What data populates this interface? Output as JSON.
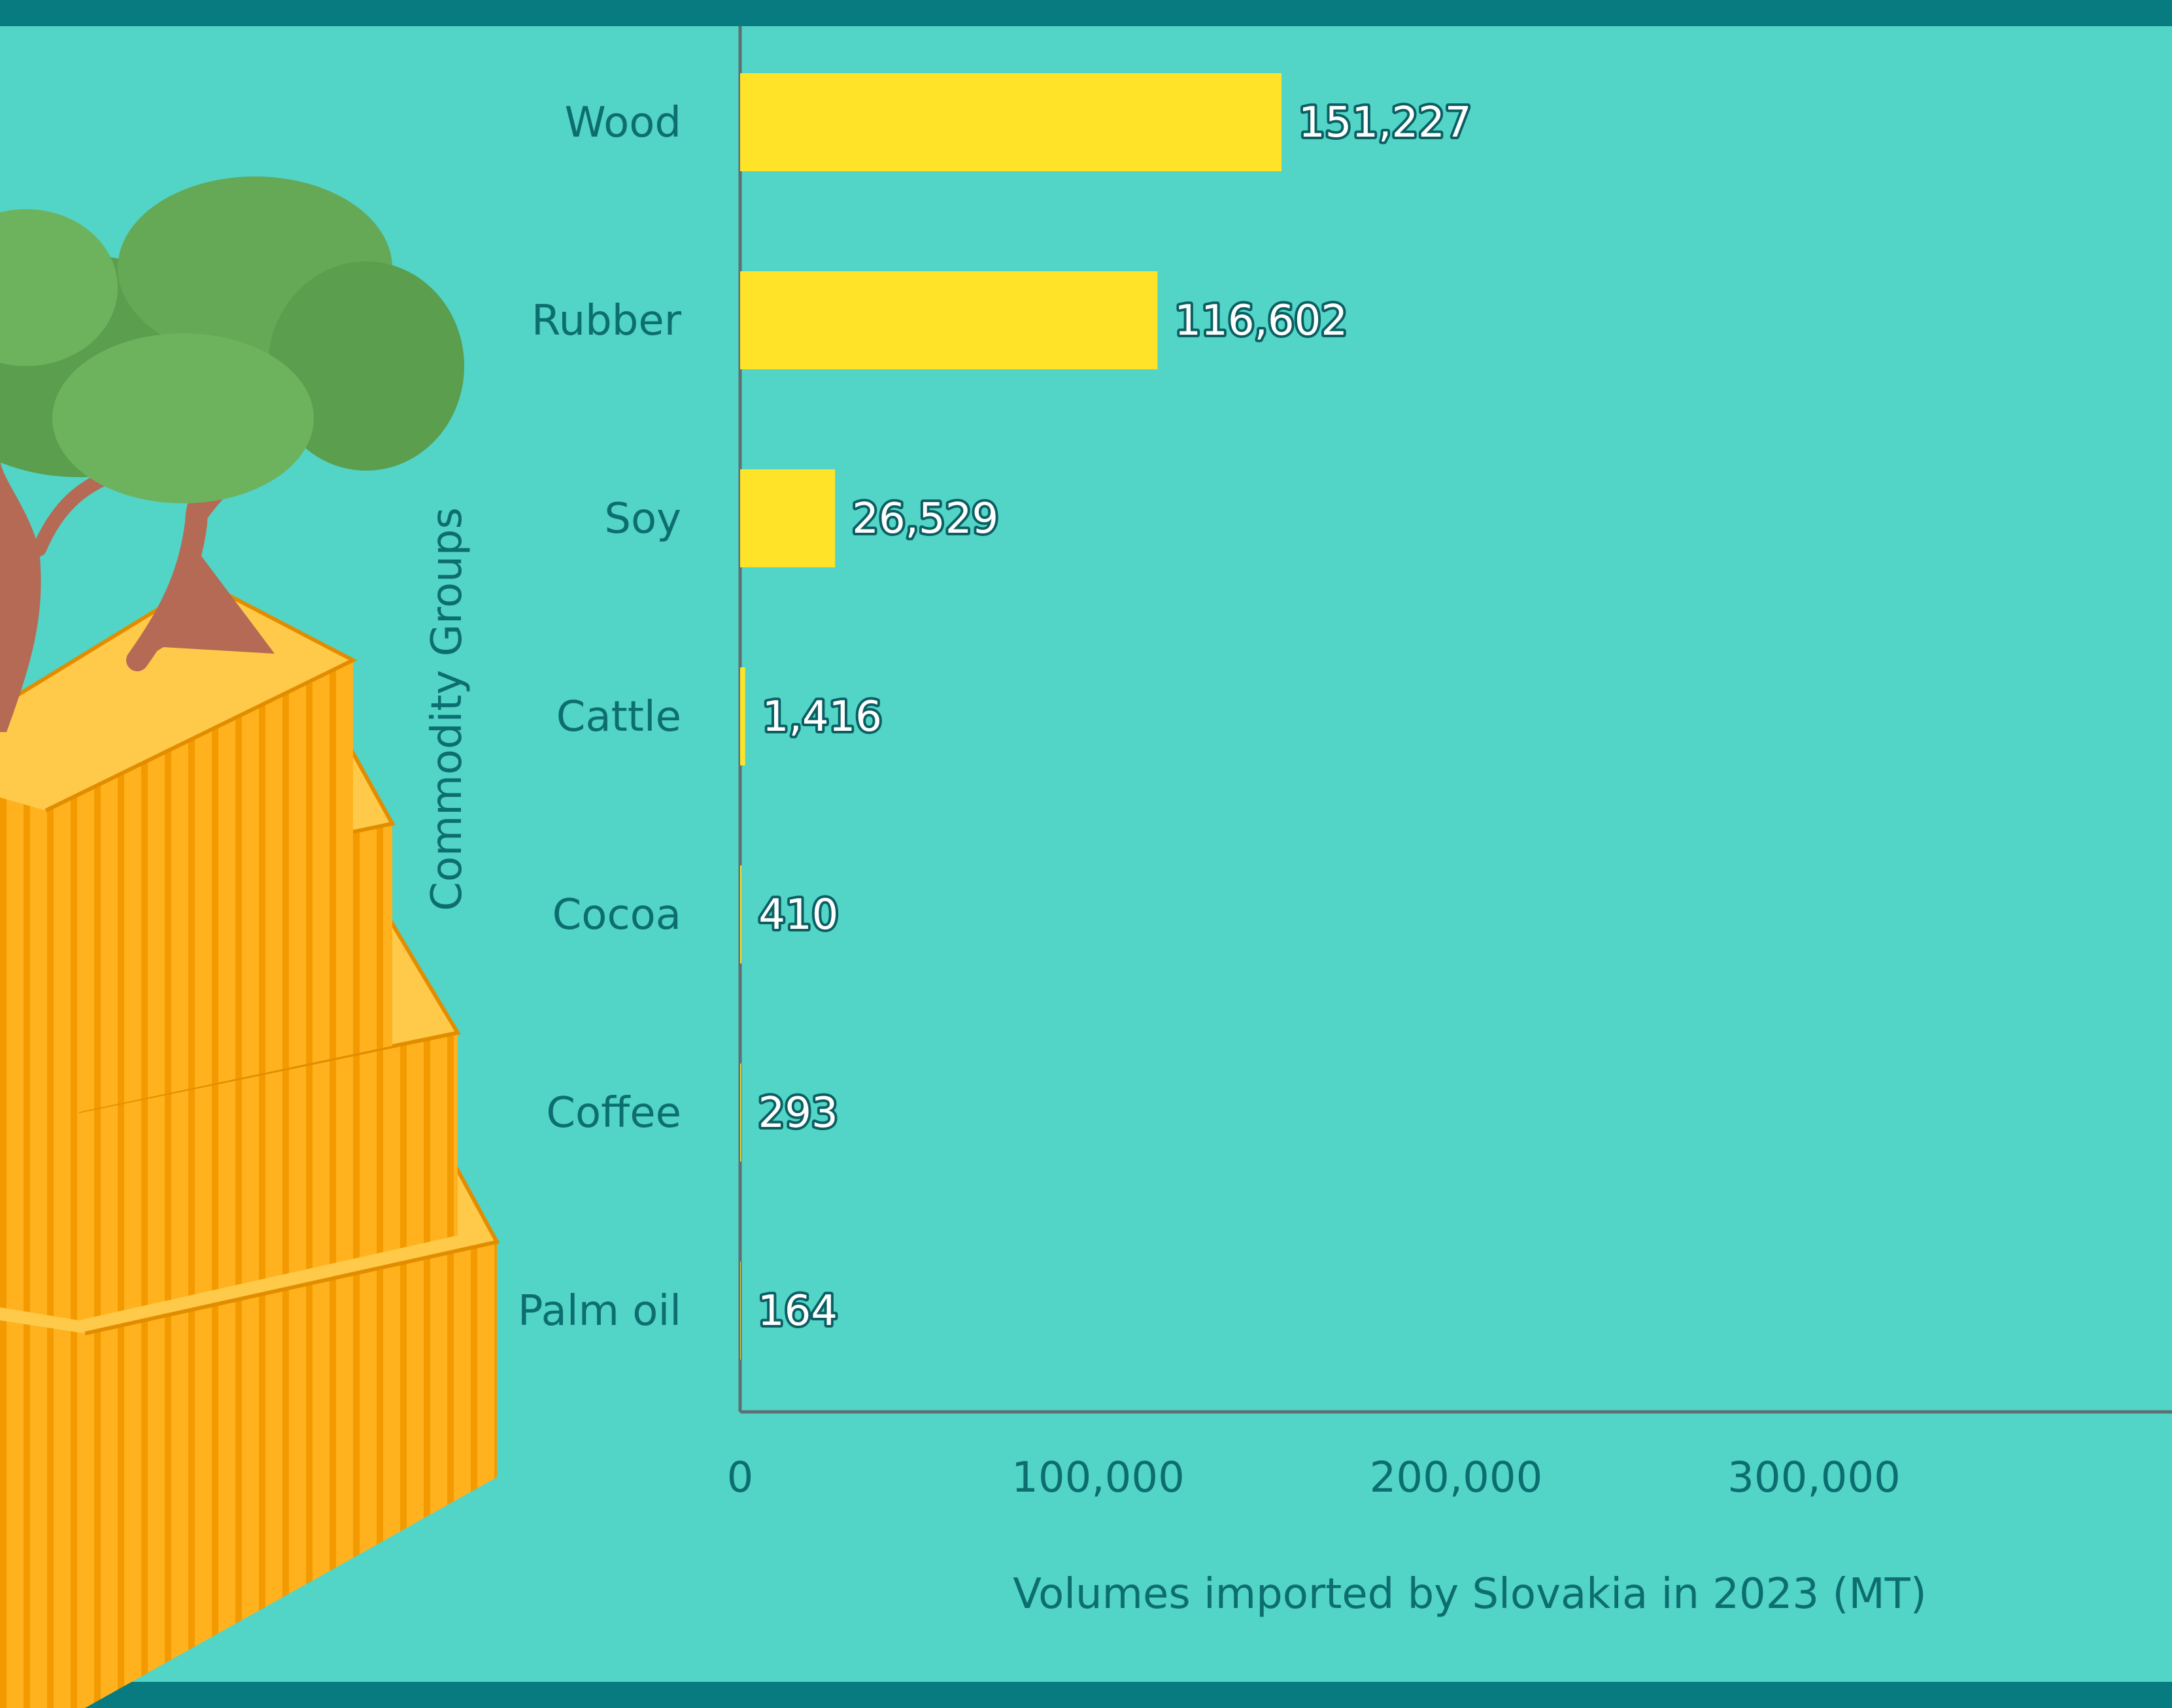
{
  "chart_data": {
    "type": "bar",
    "orientation": "horizontal",
    "categories": [
      "Wood",
      "Rubber",
      "Soy",
      "Cattle",
      "Cocoa",
      "Coffee",
      "Palm oil"
    ],
    "values": [
      151227,
      116602,
      26529,
      1416,
      410,
      293,
      164
    ],
    "value_labels": [
      "151,227",
      "116,602",
      "26,529",
      "1,416",
      "410",
      "293",
      "164"
    ],
    "xlabel": "Volumes imported by Slovakia in 2023 (MT)",
    "ylabel": "Commodity Groups",
    "xlim": [
      0,
      400000
    ],
    "xticks": [
      0,
      100000,
      200000,
      300000
    ],
    "xtick_labels": [
      "0",
      "100,000",
      "200,000",
      "300,000"
    ],
    "grid": false,
    "colors": {
      "bar": "#ffe329",
      "background": "#52d4c7",
      "band": "#077b80",
      "text": "#0d6e70",
      "axis": "#5f6f73"
    }
  },
  "illustration": {
    "icons": [
      "tree-icon",
      "shipping-container-icon"
    ]
  }
}
